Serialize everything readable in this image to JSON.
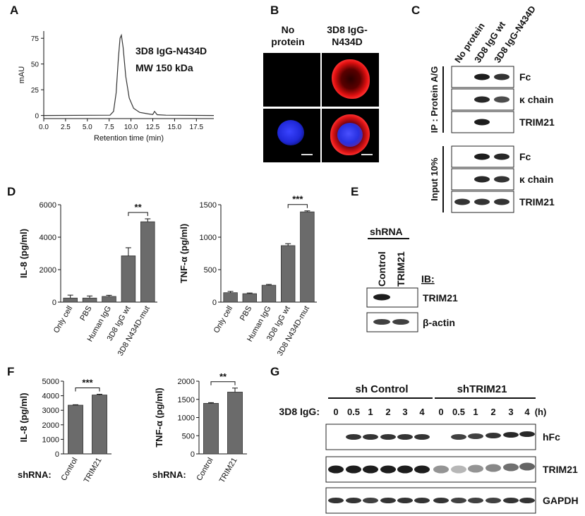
{
  "panels": {
    "A": {
      "label": "A",
      "annotation_line1": "3D8 IgG-N434D",
      "annotation_line2": "MW 150 kDa",
      "chart_data": {
        "type": "line",
        "xlabel": "Retention time (min)",
        "ylabel": "mAU",
        "xlim": [
          0,
          19.5
        ],
        "ylim": [
          -3,
          82
        ],
        "x_ticks": [
          "0.0",
          "2.5",
          "5.0",
          "7.5",
          "10.0",
          "12.5",
          "15.0",
          "17.5"
        ],
        "y_ticks": [
          "0",
          "25",
          "50",
          "75"
        ],
        "series": [
          {
            "x": [
              0,
              7.6,
              8.0,
              8.3,
              8.55,
              8.75,
              8.9,
              9.1,
              9.4,
              9.8,
              10.3,
              11,
              12,
              12.5,
              12.7,
              13,
              14,
              19.5
            ],
            "y": [
              0,
              0.3,
              4,
              22,
              55,
              75,
              78,
              66,
              38,
              17,
              7,
              3,
              1.5,
              1,
              4,
              0.8,
              0.3,
              0
            ]
          }
        ]
      }
    },
    "B": {
      "label": "B",
      "col1_line1": "No",
      "col1_line2": "protein",
      "col2_line1": "3D8 IgG-",
      "col2_line2": "N434D"
    },
    "C": {
      "label": "C",
      "lanes": [
        "No protein",
        "3D8 IgG wt",
        "3D8 IgG-N434D"
      ],
      "group1": "IP : Protein A/G",
      "group2": "Input 10%",
      "rows_ip": [
        "Fc",
        "κ chain",
        "TRIM21"
      ],
      "rows_input": [
        "Fc",
        "κ chain",
        "TRIM21"
      ]
    },
    "D": {
      "label": "D",
      "chart_data": [
        {
          "type": "bar",
          "ylabel": "IL-8 (pg/ml)",
          "categories": [
            "Only cell",
            "PBS",
            "Human IgG",
            "3D8 IgG wt",
            "3D8 N434D-mut"
          ],
          "values": [
            250,
            250,
            350,
            2850,
            4950
          ],
          "errors": [
            180,
            130,
            70,
            500,
            180
          ],
          "ylim": [
            0,
            6000
          ],
          "y_ticks": [
            "0",
            "2000",
            "4000",
            "6000"
          ],
          "significance": "**"
        },
        {
          "type": "bar",
          "ylabel": "TNF-α (pg/ml)",
          "categories": [
            "Only cell",
            "PBS",
            "Human IgG",
            "3D8 IgG wt",
            "3D8 N434D-mut"
          ],
          "values": [
            145,
            130,
            260,
            870,
            1390
          ],
          "errors": [
            20,
            10,
            12,
            30,
            15
          ],
          "ylim": [
            0,
            1500
          ],
          "y_ticks": [
            "0",
            "500",
            "1000",
            "1500"
          ],
          "significance": "***"
        }
      ]
    },
    "E": {
      "label": "E",
      "header": "shRNA",
      "lanes": [
        "Control",
        "TRIM21"
      ],
      "ib": "IB:",
      "rows": [
        "TRIM21",
        "β-actin"
      ]
    },
    "F": {
      "label": "F",
      "shrna_label": "shRNA:",
      "chart_data": [
        {
          "type": "bar",
          "ylabel": "IL-8 (pg/ml)",
          "categories": [
            "Control",
            "TRIM21"
          ],
          "values": [
            3350,
            4050
          ],
          "errors": [
            30,
            50
          ],
          "ylim": [
            0,
            5000
          ],
          "y_ticks": [
            "0",
            "1000",
            "2000",
            "3000",
            "4000",
            "5000"
          ],
          "significance": "***"
        },
        {
          "type": "bar",
          "ylabel": "TNF-α (pg/ml)",
          "categories": [
            "Control",
            "TRIM21"
          ],
          "values": [
            1390,
            1700
          ],
          "errors": [
            20,
            110
          ],
          "ylim": [
            0,
            2000
          ],
          "y_ticks": [
            "0",
            "500",
            "1000",
            "1500",
            "2000"
          ],
          "significance": "**"
        }
      ]
    },
    "G": {
      "label": "G",
      "group1": "sh Control",
      "group2": "shTRIM21",
      "time_label": "3D8 IgG:",
      "times": [
        "0",
        "0.5",
        "1",
        "2",
        "3",
        "4"
      ],
      "unit": "(h)",
      "rows": [
        "hFc",
        "TRIM21",
        "GAPDH"
      ]
    }
  }
}
